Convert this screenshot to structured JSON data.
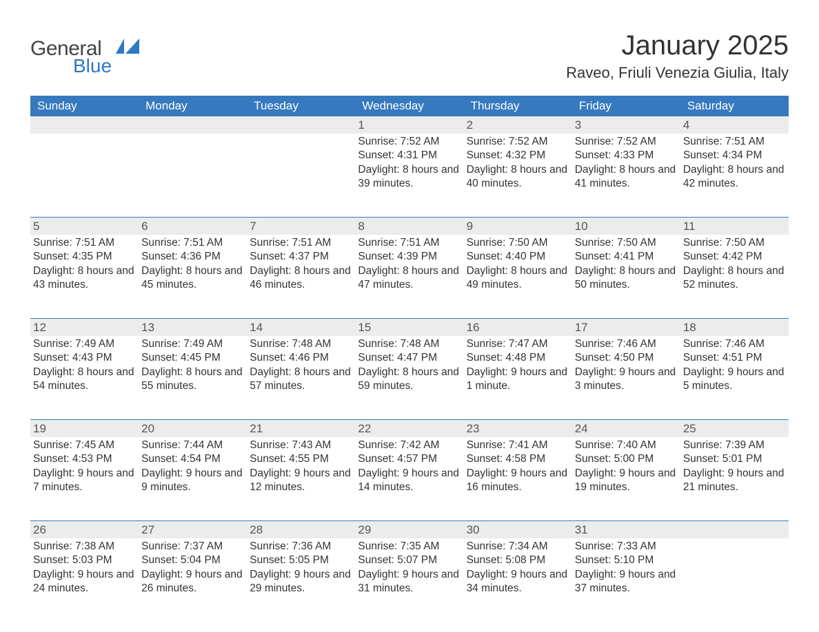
{
  "logo": {
    "text1": "General",
    "text2": "Blue",
    "shape_color": "#2f78c2"
  },
  "title": {
    "month": "January 2025",
    "location": "Raveo, Friuli Venezia Giulia, Italy"
  },
  "colors": {
    "header_bg": "#3679bf",
    "header_text": "#ffffff",
    "daynum_bg": "#ececec",
    "text": "#333333",
    "rule": "#3679bf"
  },
  "weekdays": [
    "Sunday",
    "Monday",
    "Tuesday",
    "Wednesday",
    "Thursday",
    "Friday",
    "Saturday"
  ],
  "weeks": [
    [
      null,
      null,
      null,
      {
        "n": "1",
        "sunrise": "Sunrise: 7:52 AM",
        "sunset": "Sunset: 4:31 PM",
        "day": "Daylight: 8 hours and 39 minutes."
      },
      {
        "n": "2",
        "sunrise": "Sunrise: 7:52 AM",
        "sunset": "Sunset: 4:32 PM",
        "day": "Daylight: 8 hours and 40 minutes."
      },
      {
        "n": "3",
        "sunrise": "Sunrise: 7:52 AM",
        "sunset": "Sunset: 4:33 PM",
        "day": "Daylight: 8 hours and 41 minutes."
      },
      {
        "n": "4",
        "sunrise": "Sunrise: 7:51 AM",
        "sunset": "Sunset: 4:34 PM",
        "day": "Daylight: 8 hours and 42 minutes."
      }
    ],
    [
      {
        "n": "5",
        "sunrise": "Sunrise: 7:51 AM",
        "sunset": "Sunset: 4:35 PM",
        "day": "Daylight: 8 hours and 43 minutes."
      },
      {
        "n": "6",
        "sunrise": "Sunrise: 7:51 AM",
        "sunset": "Sunset: 4:36 PM",
        "day": "Daylight: 8 hours and 45 minutes."
      },
      {
        "n": "7",
        "sunrise": "Sunrise: 7:51 AM",
        "sunset": "Sunset: 4:37 PM",
        "day": "Daylight: 8 hours and 46 minutes."
      },
      {
        "n": "8",
        "sunrise": "Sunrise: 7:51 AM",
        "sunset": "Sunset: 4:39 PM",
        "day": "Daylight: 8 hours and 47 minutes."
      },
      {
        "n": "9",
        "sunrise": "Sunrise: 7:50 AM",
        "sunset": "Sunset: 4:40 PM",
        "day": "Daylight: 8 hours and 49 minutes."
      },
      {
        "n": "10",
        "sunrise": "Sunrise: 7:50 AM",
        "sunset": "Sunset: 4:41 PM",
        "day": "Daylight: 8 hours and 50 minutes."
      },
      {
        "n": "11",
        "sunrise": "Sunrise: 7:50 AM",
        "sunset": "Sunset: 4:42 PM",
        "day": "Daylight: 8 hours and 52 minutes."
      }
    ],
    [
      {
        "n": "12",
        "sunrise": "Sunrise: 7:49 AM",
        "sunset": "Sunset: 4:43 PM",
        "day": "Daylight: 8 hours and 54 minutes."
      },
      {
        "n": "13",
        "sunrise": "Sunrise: 7:49 AM",
        "sunset": "Sunset: 4:45 PM",
        "day": "Daylight: 8 hours and 55 minutes."
      },
      {
        "n": "14",
        "sunrise": "Sunrise: 7:48 AM",
        "sunset": "Sunset: 4:46 PM",
        "day": "Daylight: 8 hours and 57 minutes."
      },
      {
        "n": "15",
        "sunrise": "Sunrise: 7:48 AM",
        "sunset": "Sunset: 4:47 PM",
        "day": "Daylight: 8 hours and 59 minutes."
      },
      {
        "n": "16",
        "sunrise": "Sunrise: 7:47 AM",
        "sunset": "Sunset: 4:48 PM",
        "day": "Daylight: 9 hours and 1 minute."
      },
      {
        "n": "17",
        "sunrise": "Sunrise: 7:46 AM",
        "sunset": "Sunset: 4:50 PM",
        "day": "Daylight: 9 hours and 3 minutes."
      },
      {
        "n": "18",
        "sunrise": "Sunrise: 7:46 AM",
        "sunset": "Sunset: 4:51 PM",
        "day": "Daylight: 9 hours and 5 minutes."
      }
    ],
    [
      {
        "n": "19",
        "sunrise": "Sunrise: 7:45 AM",
        "sunset": "Sunset: 4:53 PM",
        "day": "Daylight: 9 hours and 7 minutes."
      },
      {
        "n": "20",
        "sunrise": "Sunrise: 7:44 AM",
        "sunset": "Sunset: 4:54 PM",
        "day": "Daylight: 9 hours and 9 minutes."
      },
      {
        "n": "21",
        "sunrise": "Sunrise: 7:43 AM",
        "sunset": "Sunset: 4:55 PM",
        "day": "Daylight: 9 hours and 12 minutes."
      },
      {
        "n": "22",
        "sunrise": "Sunrise: 7:42 AM",
        "sunset": "Sunset: 4:57 PM",
        "day": "Daylight: 9 hours and 14 minutes."
      },
      {
        "n": "23",
        "sunrise": "Sunrise: 7:41 AM",
        "sunset": "Sunset: 4:58 PM",
        "day": "Daylight: 9 hours and 16 minutes."
      },
      {
        "n": "24",
        "sunrise": "Sunrise: 7:40 AM",
        "sunset": "Sunset: 5:00 PM",
        "day": "Daylight: 9 hours and 19 minutes."
      },
      {
        "n": "25",
        "sunrise": "Sunrise: 7:39 AM",
        "sunset": "Sunset: 5:01 PM",
        "day": "Daylight: 9 hours and 21 minutes."
      }
    ],
    [
      {
        "n": "26",
        "sunrise": "Sunrise: 7:38 AM",
        "sunset": "Sunset: 5:03 PM",
        "day": "Daylight: 9 hours and 24 minutes."
      },
      {
        "n": "27",
        "sunrise": "Sunrise: 7:37 AM",
        "sunset": "Sunset: 5:04 PM",
        "day": "Daylight: 9 hours and 26 minutes."
      },
      {
        "n": "28",
        "sunrise": "Sunrise: 7:36 AM",
        "sunset": "Sunset: 5:05 PM",
        "day": "Daylight: 9 hours and 29 minutes."
      },
      {
        "n": "29",
        "sunrise": "Sunrise: 7:35 AM",
        "sunset": "Sunset: 5:07 PM",
        "day": "Daylight: 9 hours and 31 minutes."
      },
      {
        "n": "30",
        "sunrise": "Sunrise: 7:34 AM",
        "sunset": "Sunset: 5:08 PM",
        "day": "Daylight: 9 hours and 34 minutes."
      },
      {
        "n": "31",
        "sunrise": "Sunrise: 7:33 AM",
        "sunset": "Sunset: 5:10 PM",
        "day": "Daylight: 9 hours and 37 minutes."
      },
      null
    ]
  ]
}
